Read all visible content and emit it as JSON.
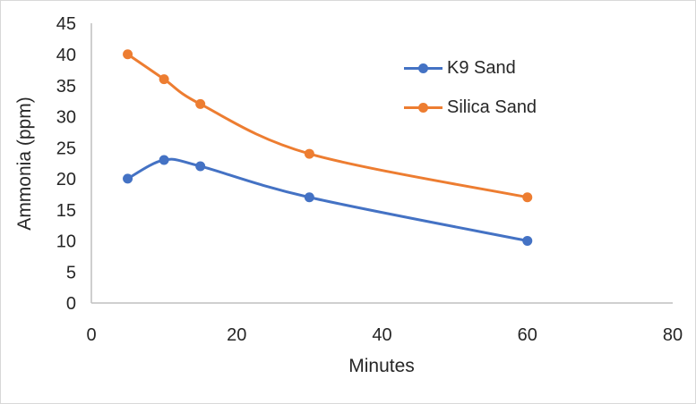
{
  "chart_data": {
    "type": "line",
    "title": "",
    "x": [
      5,
      10,
      15,
      30,
      60
    ],
    "series": [
      {
        "name": "K9 Sand",
        "color": "#4472C4",
        "values": [
          20,
          23,
          22,
          17,
          10
        ]
      },
      {
        "name": "Silica Sand",
        "color": "#ED7D31",
        "values": [
          40,
          36,
          32,
          24,
          17
        ]
      }
    ],
    "xlabel": "Minutes",
    "ylabel": "Ammonia (ppm)",
    "xlim": [
      0,
      80
    ],
    "ylim": [
      0,
      45
    ],
    "x_ticks": [
      0,
      20,
      40,
      60,
      80
    ],
    "y_ticks": [
      0,
      5,
      10,
      15,
      20,
      25,
      30,
      35,
      40,
      45
    ],
    "grid": false,
    "smooth_lines": true,
    "markers": true,
    "legend_position": "inside-upper-right"
  },
  "style": {
    "axis_line_color": "#BFBFBF",
    "text_color": "#262626",
    "border_color": "#D8D8D8",
    "background": "#FFFFFF"
  }
}
